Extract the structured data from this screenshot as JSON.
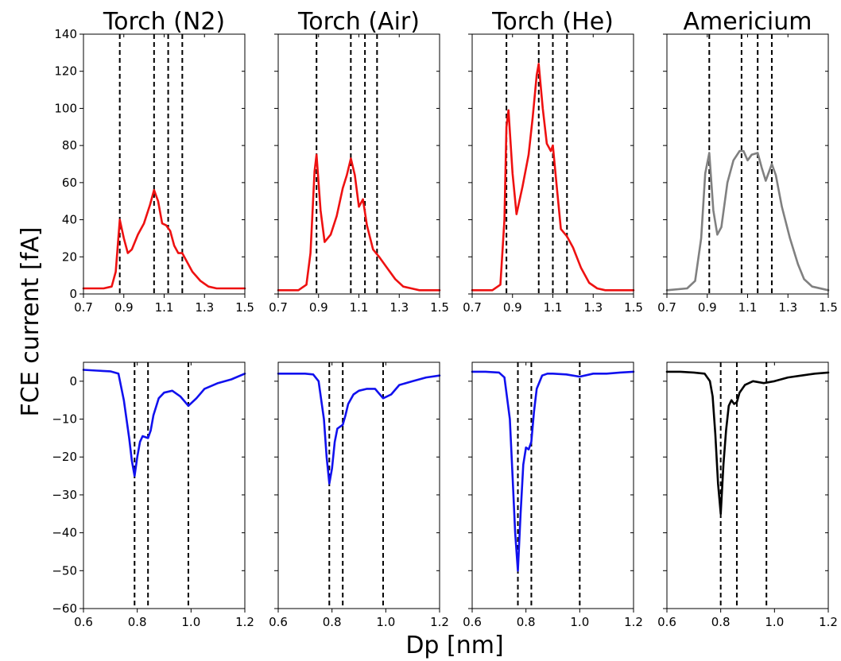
{
  "figure": {
    "ylabel": "FCE current [fA]",
    "xlabel": "Dp [nm]"
  },
  "chart_data": [
    {
      "type": "line",
      "title": "Torch (N2)",
      "row": "top",
      "xlim": [
        0.7,
        1.5
      ],
      "ylim": [
        0,
        140
      ],
      "xticks": [
        "0.7",
        "0.9",
        "1.1",
        "1.3",
        "1.5"
      ],
      "yticks": [
        "0",
        "20",
        "40",
        "60",
        "80",
        "100",
        "120",
        "140"
      ],
      "show_yticks": true,
      "color": "#ee1111",
      "vlines": [
        0.88,
        1.05,
        1.12,
        1.19
      ],
      "x": [
        0.7,
        0.8,
        0.84,
        0.86,
        0.88,
        0.9,
        0.92,
        0.94,
        0.97,
        1.0,
        1.03,
        1.05,
        1.07,
        1.09,
        1.11,
        1.13,
        1.15,
        1.17,
        1.19,
        1.21,
        1.24,
        1.28,
        1.32,
        1.36,
        1.4,
        1.5
      ],
      "y": [
        3,
        3,
        4,
        12,
        40,
        30,
        22,
        24,
        32,
        38,
        48,
        56,
        50,
        38,
        37,
        34,
        26,
        22,
        22,
        18,
        12,
        7,
        4,
        3,
        3,
        3
      ]
    },
    {
      "type": "line",
      "title": "Torch (Air)",
      "row": "top",
      "xlim": [
        0.7,
        1.5
      ],
      "ylim": [
        0,
        140
      ],
      "xticks": [
        "0.7",
        "0.9",
        "1.1",
        "1.3",
        "1.5"
      ],
      "yticks": [],
      "show_yticks": false,
      "color": "#ee1111",
      "vlines": [
        0.89,
        1.06,
        1.13,
        1.19
      ],
      "x": [
        0.7,
        0.8,
        0.84,
        0.86,
        0.88,
        0.89,
        0.91,
        0.93,
        0.96,
        0.99,
        1.02,
        1.04,
        1.06,
        1.08,
        1.1,
        1.12,
        1.14,
        1.17,
        1.2,
        1.24,
        1.28,
        1.32,
        1.36,
        1.4,
        1.5
      ],
      "y": [
        2,
        2,
        5,
        22,
        66,
        75,
        45,
        28,
        32,
        42,
        57,
        64,
        73,
        64,
        47,
        51,
        37,
        24,
        20,
        14,
        8,
        4,
        3,
        2,
        2
      ]
    },
    {
      "type": "line",
      "title": "Torch (He)",
      "row": "top",
      "xlim": [
        0.7,
        1.5
      ],
      "ylim": [
        0,
        140
      ],
      "xticks": [
        "0.7",
        "0.9",
        "1.1",
        "1.3",
        "1.5"
      ],
      "yticks": [],
      "show_yticks": false,
      "color": "#ee1111",
      "vlines": [
        0.87,
        1.03,
        1.1,
        1.17
      ],
      "x": [
        0.7,
        0.8,
        0.84,
        0.86,
        0.87,
        0.88,
        0.9,
        0.92,
        0.95,
        0.98,
        1.0,
        1.02,
        1.03,
        1.05,
        1.07,
        1.09,
        1.1,
        1.12,
        1.14,
        1.17,
        1.2,
        1.24,
        1.28,
        1.32,
        1.36,
        1.4,
        1.5
      ],
      "y": [
        2,
        2,
        5,
        40,
        90,
        99,
        65,
        43,
        58,
        75,
        95,
        118,
        124,
        100,
        81,
        77,
        80,
        57,
        35,
        31,
        25,
        14,
        6,
        3,
        2,
        2,
        2
      ]
    },
    {
      "type": "line",
      "title": "Americium",
      "row": "top",
      "xlim": [
        0.7,
        1.5
      ],
      "ylim": [
        0,
        140
      ],
      "xticks": [
        "0.7",
        "0.9",
        "1.1",
        "1.3",
        "1.5"
      ],
      "yticks": [],
      "show_yticks": false,
      "color": "#808080",
      "vlines": [
        0.91,
        1.07,
        1.15,
        1.22
      ],
      "x": [
        0.7,
        0.8,
        0.84,
        0.87,
        0.89,
        0.91,
        0.93,
        0.95,
        0.97,
        1.0,
        1.03,
        1.06,
        1.08,
        1.1,
        1.12,
        1.15,
        1.17,
        1.19,
        1.22,
        1.24,
        1.27,
        1.31,
        1.35,
        1.38,
        1.42,
        1.5
      ],
      "y": [
        2,
        3,
        7,
        30,
        65,
        76,
        45,
        32,
        36,
        60,
        72,
        77,
        77,
        72,
        75,
        76,
        68,
        61,
        70,
        64,
        47,
        30,
        16,
        8,
        4,
        2
      ]
    },
    {
      "type": "line",
      "title": "",
      "row": "bottom",
      "xlim": [
        0.6,
        1.2
      ],
      "ylim": [
        -60,
        5
      ],
      "xticks": [
        "0.6",
        "0.8",
        "1.0",
        "1.2"
      ],
      "yticks": [
        "0",
        "−10",
        "−20",
        "−30",
        "−40",
        "−50",
        "−60"
      ],
      "show_yticks": true,
      "color": "#1111ee",
      "vlines": [
        0.79,
        0.84,
        0.99
      ],
      "x": [
        0.6,
        0.65,
        0.7,
        0.73,
        0.75,
        0.77,
        0.78,
        0.79,
        0.8,
        0.81,
        0.82,
        0.84,
        0.85,
        0.86,
        0.88,
        0.9,
        0.93,
        0.96,
        0.99,
        1.02,
        1.05,
        1.1,
        1.15,
        1.2
      ],
      "y": [
        3,
        2.8,
        2.6,
        2,
        -5,
        -15,
        -21,
        -25,
        -20,
        -16,
        -14.5,
        -15,
        -13,
        -9,
        -4.5,
        -3,
        -2.5,
        -4,
        -6.5,
        -4.5,
        -2,
        -0.5,
        0.5,
        2
      ]
    },
    {
      "type": "line",
      "title": "",
      "row": "bottom",
      "xlim": [
        0.6,
        1.2
      ],
      "ylim": [
        -60,
        5
      ],
      "xticks": [
        "0.6",
        "0.8",
        "1.0",
        "1.2"
      ],
      "yticks": [],
      "show_yticks": false,
      "color": "#1111ee",
      "vlines": [
        0.79,
        0.84,
        0.99
      ],
      "x": [
        0.6,
        0.65,
        0.7,
        0.73,
        0.75,
        0.77,
        0.78,
        0.79,
        0.8,
        0.81,
        0.82,
        0.84,
        0.85,
        0.86,
        0.88,
        0.9,
        0.93,
        0.96,
        0.99,
        1.02,
        1.05,
        1.1,
        1.15,
        1.2
      ],
      "y": [
        2,
        2,
        2,
        1.8,
        0,
        -10,
        -20,
        -27,
        -23,
        -16,
        -12.5,
        -11.5,
        -9,
        -6,
        -3.5,
        -2.5,
        -2,
        -2,
        -4.5,
        -3.5,
        -1,
        0,
        1,
        1.5
      ]
    },
    {
      "type": "line",
      "title": "",
      "row": "bottom",
      "xlim": [
        0.6,
        1.2
      ],
      "ylim": [
        -60,
        5
      ],
      "xticks": [
        "0.6",
        "0.8",
        "1.0",
        "1.2"
      ],
      "yticks": [],
      "show_yticks": false,
      "color": "#1111ee",
      "vlines": [
        0.77,
        0.82,
        1.0
      ],
      "x": [
        0.6,
        0.65,
        0.7,
        0.72,
        0.74,
        0.75,
        0.76,
        0.77,
        0.78,
        0.79,
        0.8,
        0.81,
        0.82,
        0.83,
        0.84,
        0.86,
        0.88,
        0.9,
        0.95,
        1.0,
        1.05,
        1.1,
        1.15,
        1.2
      ],
      "y": [
        2.5,
        2.5,
        2.3,
        1,
        -10,
        -25,
        -40,
        -50,
        -35,
        -22,
        -17.5,
        -18,
        -16,
        -8,
        -2,
        1.5,
        2,
        2,
        1.8,
        1.2,
        2,
        2,
        2.3,
        2.5
      ]
    },
    {
      "type": "line",
      "title": "",
      "row": "bottom",
      "xlim": [
        0.6,
        1.2
      ],
      "ylim": [
        -60,
        5
      ],
      "xticks": [
        "0.6",
        "0.8",
        "1.0",
        "1.2"
      ],
      "yticks": [],
      "show_yticks": false,
      "color": "#000000",
      "vlines": [
        0.8,
        0.86,
        0.97
      ],
      "x": [
        0.6,
        0.65,
        0.7,
        0.74,
        0.76,
        0.77,
        0.78,
        0.79,
        0.8,
        0.81,
        0.82,
        0.83,
        0.84,
        0.85,
        0.86,
        0.87,
        0.89,
        0.92,
        0.96,
        1.0,
        1.05,
        1.1,
        1.15,
        1.2
      ],
      "y": [
        2.5,
        2.5,
        2.3,
        2,
        0,
        -4,
        -14,
        -27,
        -35,
        -22,
        -13,
        -6.5,
        -5,
        -6,
        -5.5,
        -3,
        -1,
        0,
        -0.5,
        0,
        1,
        1.5,
        2,
        2.3
      ]
    }
  ]
}
